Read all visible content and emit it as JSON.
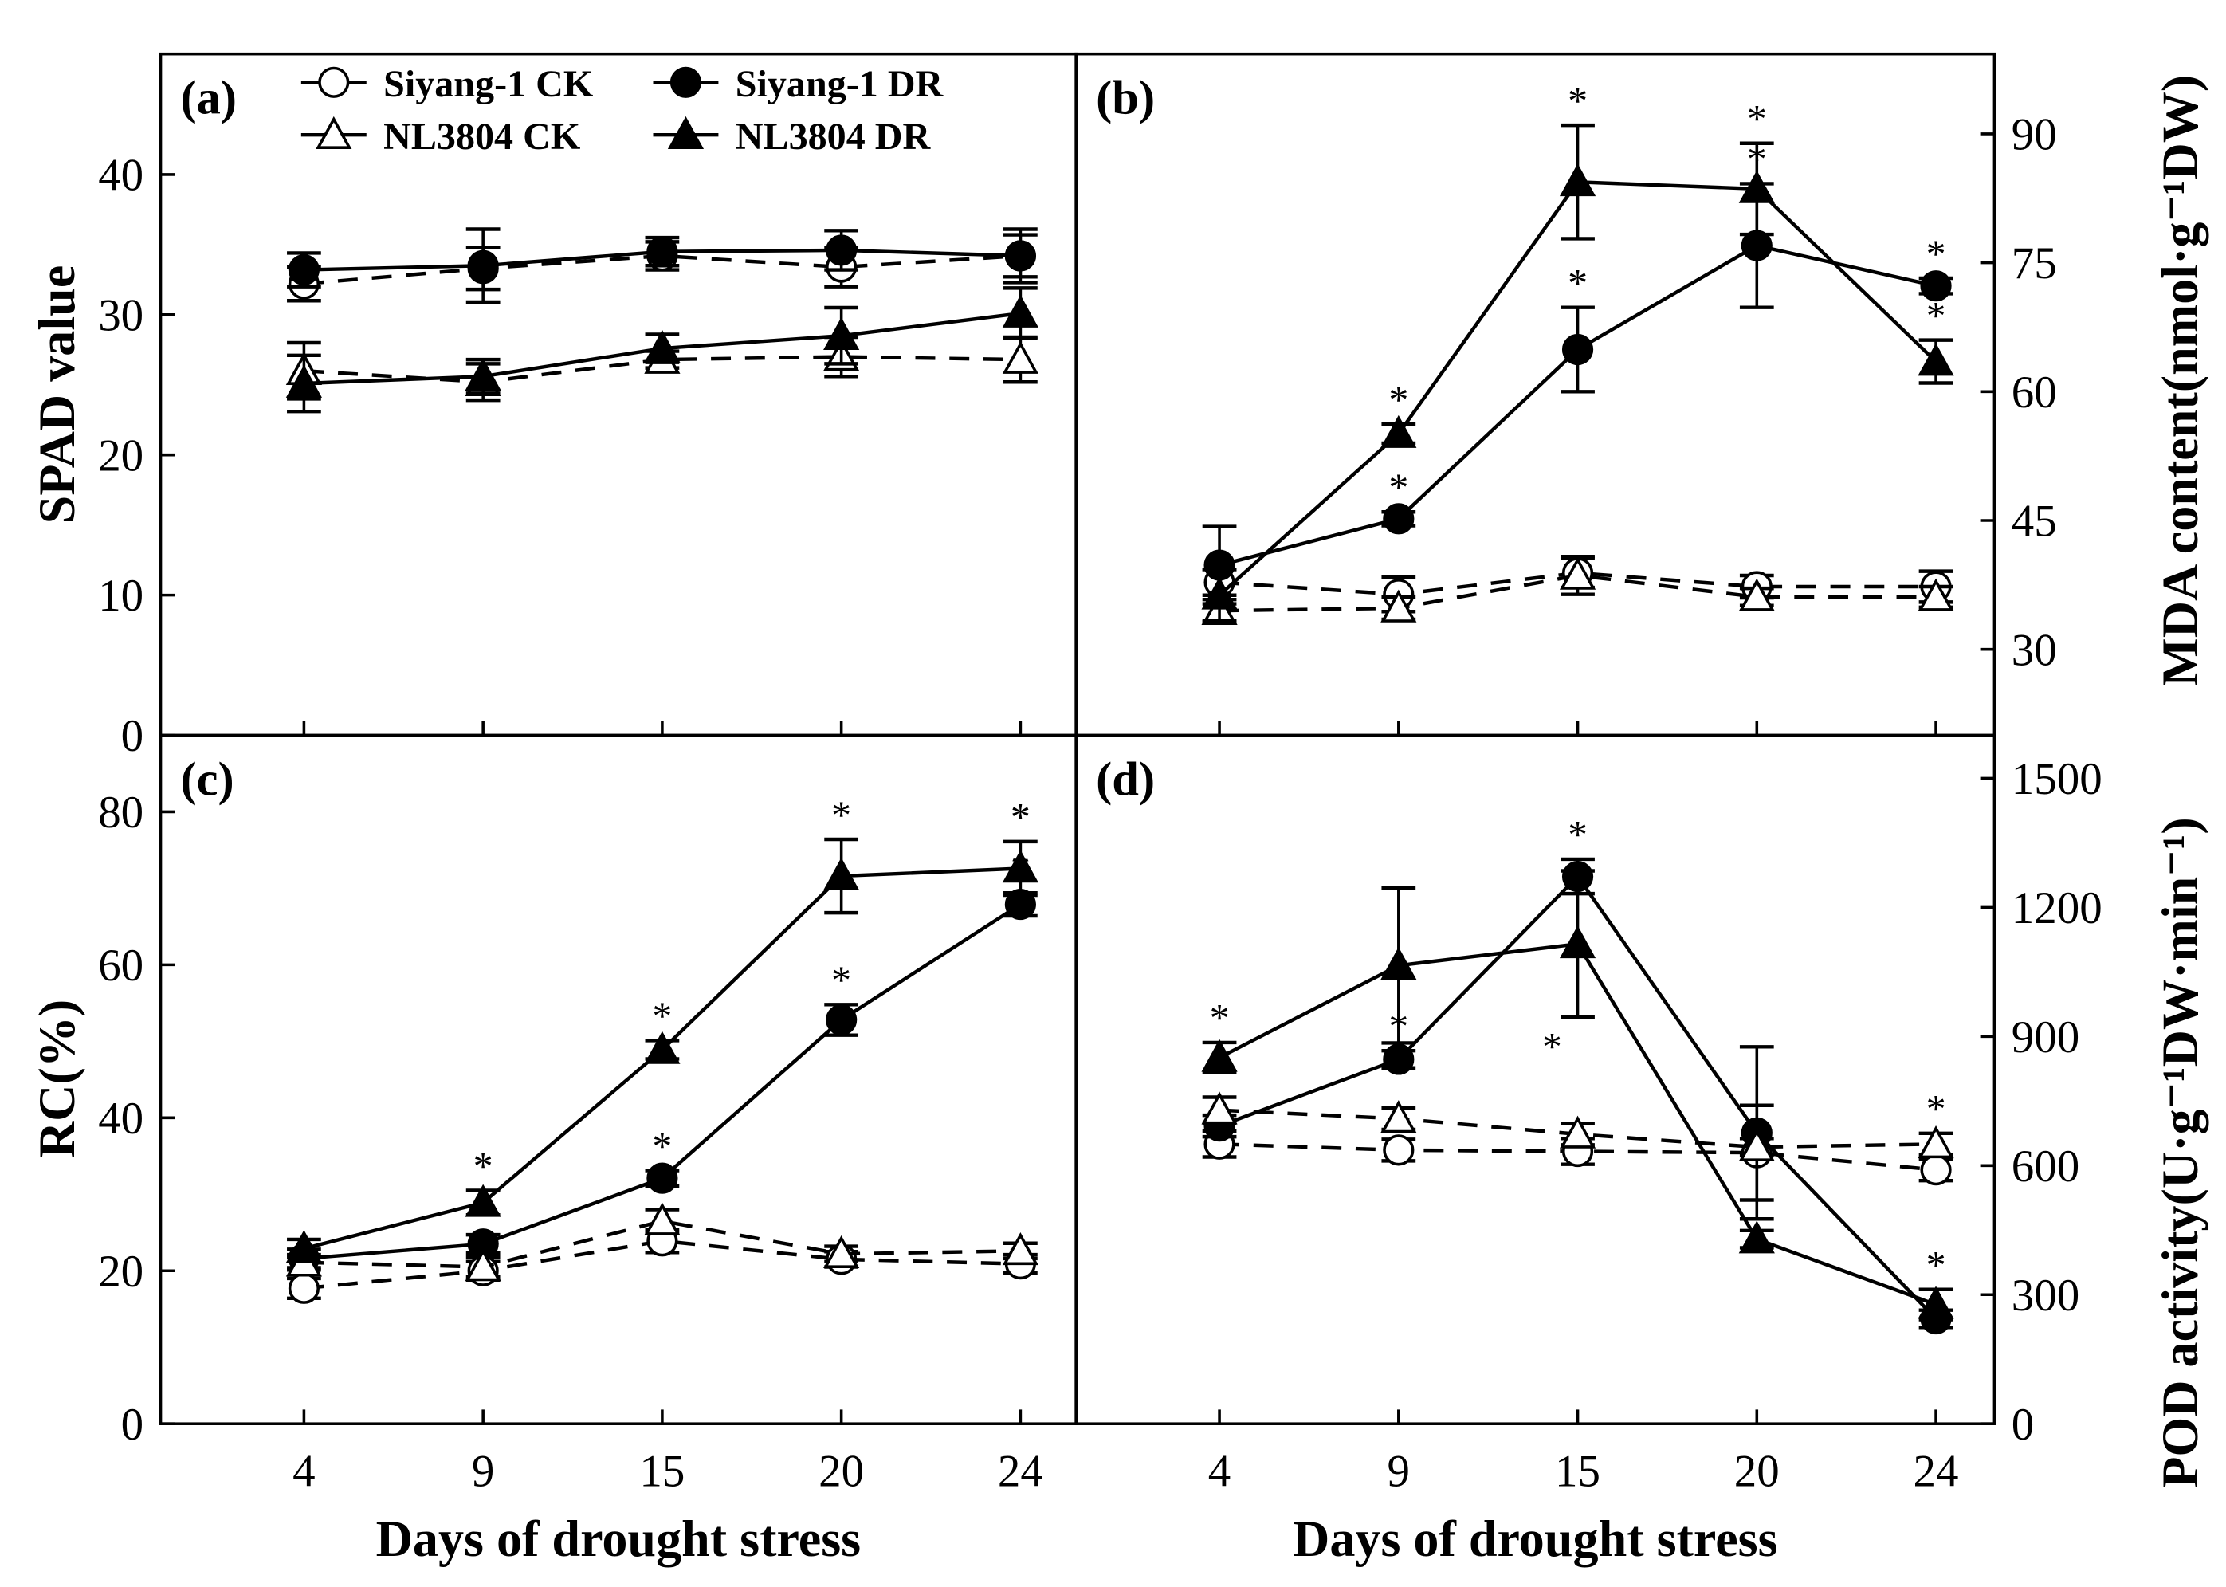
{
  "legend": {
    "items": [
      {
        "label": "Siyang-1 CK",
        "marker": "circle-open",
        "dash": true
      },
      {
        "label": "Siyang-1 DR",
        "marker": "circle-filled",
        "dash": false
      },
      {
        "label": "NL3804 CK",
        "marker": "triangle-open",
        "dash": true
      },
      {
        "label": "NL3804 DR",
        "marker": "triangle-filled",
        "dash": false
      }
    ]
  },
  "chart_data": [
    {
      "type": "line",
      "panel_label": "(a)",
      "ylabel": "SPAD value",
      "xlabel": "",
      "axis_side": "left",
      "ylim": [
        0,
        48.6
      ],
      "yticks": [
        0,
        10,
        20,
        30,
        40
      ],
      "categories": [
        "4",
        "9",
        "15",
        "20",
        "24"
      ],
      "show_xticklabels": false,
      "series": [
        {
          "name": "Siyang-1 CK",
          "values": [
            32.2,
            33.3,
            34.2,
            33.4,
            34.2
          ],
          "err": [
            1.2,
            1.5,
            1.0,
            1.4,
            1.5
          ],
          "sig": [
            false,
            false,
            false,
            false,
            false
          ]
        },
        {
          "name": "Siyang-1 DR",
          "values": [
            33.2,
            33.5,
            34.5,
            34.6,
            34.2
          ],
          "err": [
            1.2,
            2.6,
            1.0,
            1.4,
            1.9
          ],
          "sig": [
            false,
            false,
            false,
            false,
            false
          ]
        },
        {
          "name": "NL3804 CK",
          "values": [
            26.0,
            25.2,
            26.8,
            27.0,
            26.8
          ],
          "err": [
            2.0,
            1.3,
            0.6,
            1.4,
            1.6
          ],
          "sig": [
            false,
            false,
            false,
            false,
            false
          ]
        },
        {
          "name": "NL3804 DR",
          "values": [
            25.1,
            25.6,
            27.6,
            28.5,
            30.1
          ],
          "err": [
            2.0,
            1.2,
            1.0,
            2.0,
            1.8
          ],
          "sig": [
            false,
            false,
            false,
            false,
            true
          ]
        }
      ]
    },
    {
      "type": "line",
      "panel_label": "(b)",
      "ylabel": "MDA content(nmol·g⁻¹DW)",
      "xlabel": "",
      "axis_side": "right",
      "ylim": [
        20,
        99.3
      ],
      "yticks": [
        30,
        45,
        60,
        75,
        90
      ],
      "categories": [
        "4",
        "9",
        "15",
        "20",
        "24"
      ],
      "show_xticklabels": false,
      "series": [
        {
          "name": "Siyang-1 CK",
          "values": [
            37.8,
            36.4,
            38.9,
            37.3,
            37.3
          ],
          "err": [
            1.5,
            2.0,
            1.7,
            1.3,
            1.8
          ],
          "sig": [
            false,
            false,
            false,
            false,
            false
          ]
        },
        {
          "name": "Siyang-1 DR",
          "values": [
            39.8,
            45.2,
            64.9,
            77.0,
            72.3
          ],
          "err": [
            4.5,
            0.8,
            4.9,
            7.2,
            0.9
          ],
          "sig": [
            false,
            true,
            true,
            true,
            true
          ]
        },
        {
          "name": "NL3804 CK",
          "values": [
            34.5,
            34.8,
            38.6,
            36.1,
            36.1
          ],
          "err": [
            1.3,
            1.3,
            2.2,
            1.0,
            1.2
          ],
          "sig": [
            false,
            false,
            false,
            false,
            false
          ]
        },
        {
          "name": "NL3804 DR",
          "values": [
            36.3,
            55.1,
            84.4,
            83.6,
            63.5
          ],
          "err": [
            3.0,
            1.1,
            6.6,
            5.3,
            2.5
          ],
          "sig": [
            false,
            true,
            true,
            true,
            true
          ]
        }
      ]
    },
    {
      "type": "line",
      "panel_label": "(c)",
      "ylabel": "RC(%)",
      "xlabel": "Days of drought stress",
      "axis_side": "left",
      "ylim": [
        0,
        90
      ],
      "yticks": [
        0,
        20,
        40,
        60,
        80
      ],
      "categories": [
        "4",
        "9",
        "15",
        "20",
        "24"
      ],
      "show_xticklabels": true,
      "series": [
        {
          "name": "Siyang-1 CK",
          "values": [
            17.7,
            20.0,
            23.9,
            21.5,
            20.9
          ],
          "err": [
            1.3,
            1.2,
            1.5,
            1.0,
            1.2
          ],
          "sig": [
            false,
            false,
            false,
            false,
            false
          ]
        },
        {
          "name": "Siyang-1 DR",
          "values": [
            21.6,
            23.5,
            32.1,
            52.8,
            67.9
          ],
          "err": [
            1.2,
            1.2,
            1.0,
            2.0,
            1.5
          ],
          "sig": [
            false,
            false,
            true,
            true,
            true
          ]
        },
        {
          "name": "NL3804 CK",
          "values": [
            21.1,
            20.5,
            26.5,
            22.2,
            22.6
          ],
          "err": [
            1.0,
            1.3,
            1.5,
            1.0,
            1.0
          ],
          "sig": [
            false,
            false,
            false,
            false,
            false
          ]
        },
        {
          "name": "NL3804 DR",
          "values": [
            22.9,
            28.9,
            48.9,
            71.6,
            72.6
          ],
          "err": [
            1.2,
            1.6,
            1.2,
            4.8,
            3.5
          ],
          "sig": [
            false,
            true,
            true,
            true,
            true
          ]
        }
      ]
    },
    {
      "type": "line",
      "panel_label": "(d)",
      "ylabel": "POD activity(U·g⁻¹DW·min⁻¹)",
      "xlabel": "Days of drought stress",
      "axis_side": "right",
      "ylim": [
        0,
        1600
      ],
      "yticks": [
        0,
        300,
        600,
        900,
        1200,
        1500
      ],
      "categories": [
        "4",
        "9",
        "15",
        "20",
        "24"
      ],
      "show_xticklabels": true,
      "series": [
        {
          "name": "Siyang-1 CK",
          "values": [
            650,
            636,
            633,
            630,
            590
          ],
          "err": [
            30,
            25,
            30,
            110,
            25
          ],
          "sig": [
            false,
            false,
            false,
            false,
            false
          ]
        },
        {
          "name": "Siyang-1 DR",
          "values": [
            692,
            847,
            1272,
            676,
            244
          ],
          "err": [
            25,
            20,
            40,
            200,
            20
          ],
          "sig": [
            false,
            true,
            true,
            false,
            false
          ]
        },
        {
          "name": "NL3804 CK",
          "values": [
            729,
            709,
            673,
            643,
            650
          ],
          "err": [
            30,
            25,
            25,
            20,
            25
          ],
          "sig": [
            false,
            false,
            false,
            false,
            true
          ]
        },
        {
          "name": "NL3804 DR",
          "values": [
            851,
            1065,
            1115,
            429,
            277
          ],
          "err": [
            35,
            180,
            170,
            20,
            35
          ],
          "sig": [
            true,
            false,
            true,
            false,
            true
          ]
        }
      ]
    }
  ]
}
